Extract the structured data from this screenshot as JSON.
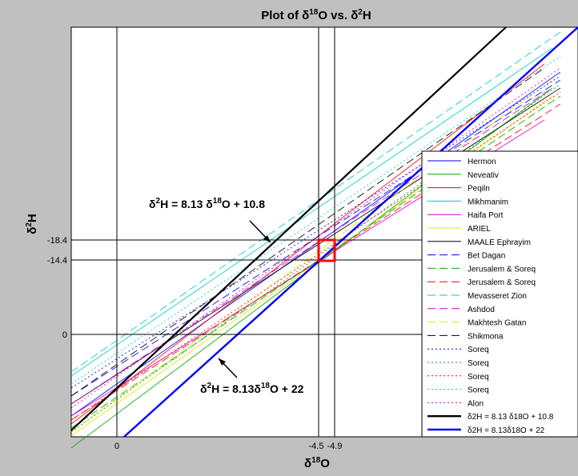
{
  "chart_data": {
    "type": "line",
    "title_main": "Plot of",
    "title_vs": "vs.",
    "xlabel": "δ18O",
    "ylabel": "δ2H",
    "x_ticks": [
      "0",
      "-4.5",
      "-4.9"
    ],
    "y_ticks": [
      "-18.4",
      "-14.4",
      "0"
    ],
    "marker_box": {
      "x": [
        -4.5,
        -4.9
      ],
      "y": [
        -18.4,
        -14.4
      ]
    },
    "annotations": [
      {
        "text": "δ2H = 8.13 δ18O + 10.8",
        "series": "δ2H = 8.13 δ18O + 10.8"
      },
      {
        "text": "δ2H = 8.13δ18O + 22",
        "series": "δ2H = 8.13δ18O + 22"
      }
    ],
    "legend_position": "right",
    "series": [
      {
        "name": "Hermon",
        "color": "#0000ff",
        "dash": "solid"
      },
      {
        "name": "Neveativ",
        "color": "#00aa00",
        "dash": "solid"
      },
      {
        "name": "Peqiln",
        "color": "#ff0000",
        "dash": "solid"
      },
      {
        "name": "Mikhmanim",
        "color": "#00cccc",
        "dash": "solid"
      },
      {
        "name": "Haifa Port",
        "color": "#cc00cc",
        "dash": "solid"
      },
      {
        "name": "ARIEL",
        "color": "#e6e600",
        "dash": "solid"
      },
      {
        "name": "MAALE Ephrayim",
        "color": "#000000",
        "dash": "solid"
      },
      {
        "name": "Bet Dagan",
        "color": "#0000ff",
        "dash": "longdash"
      },
      {
        "name": "Jerusalem & Soreq",
        "color": "#00aa00",
        "dash": "longdash"
      },
      {
        "name": "Jerusalem & Soreq",
        "color": "#ff0000",
        "dash": "longdash"
      },
      {
        "name": "Mevasseret Zion",
        "color": "#00cccc",
        "dash": "longdash"
      },
      {
        "name": "Ashdod",
        "color": "#cc00cc",
        "dash": "longdash"
      },
      {
        "name": "Makhtesh Gatan",
        "color": "#e6e600",
        "dash": "longdash"
      },
      {
        "name": "Shikmona",
        "color": "#000000",
        "dash": "longdash"
      },
      {
        "name": "Soreq",
        "color": "#0000ff",
        "dash": "dot"
      },
      {
        "name": "Soreq",
        "color": "#00aa00",
        "dash": "dot"
      },
      {
        "name": "Soreq",
        "color": "#ff0000",
        "dash": "dot"
      },
      {
        "name": "Soreq",
        "color": "#00cccc",
        "dash": "dot"
      },
      {
        "name": "Alon",
        "color": "#cc00cc",
        "dash": "dot"
      },
      {
        "name": "δ2H = 8.13 δ18O + 10.8",
        "color": "#000000",
        "dash": "solid",
        "bold": true
      },
      {
        "name": "δ2H = 8.13δ18O + 22",
        "color": "#0000ff",
        "dash": "solid",
        "bold": true
      }
    ]
  }
}
